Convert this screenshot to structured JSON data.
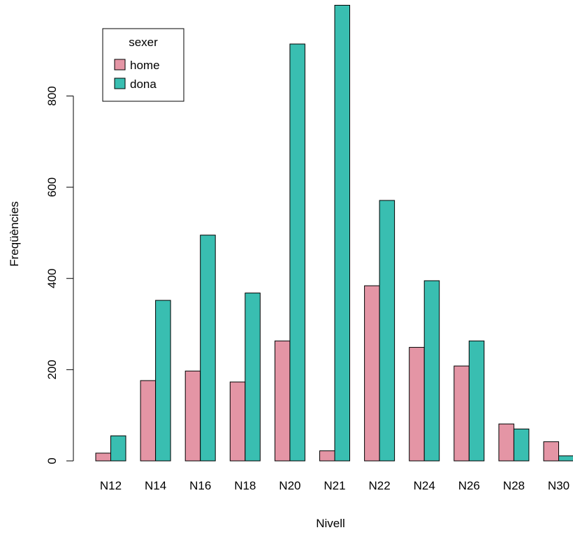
{
  "chart_data": {
    "type": "bar",
    "title": "",
    "xlabel": "Nivell",
    "ylabel": "Freqüències",
    "categories": [
      "N12",
      "N14",
      "N16",
      "N18",
      "N20",
      "N21",
      "N22",
      "N24",
      "N26",
      "N28",
      "N30"
    ],
    "series": [
      {
        "name": "home",
        "color": "#E495A5",
        "values": [
          17,
          176,
          197,
          173,
          263,
          22,
          384,
          249,
          208,
          81,
          42
        ]
      },
      {
        "name": "dona",
        "color": "#39BEB1",
        "values": [
          55,
          352,
          495,
          368,
          914,
          999,
          571,
          395,
          263,
          70,
          11
        ]
      }
    ],
    "ylim": [
      0,
      1000
    ],
    "yticks": [
      0,
      200,
      400,
      600,
      800
    ],
    "grid": false,
    "legend": {
      "title": "sexer",
      "position": "top-left"
    }
  }
}
